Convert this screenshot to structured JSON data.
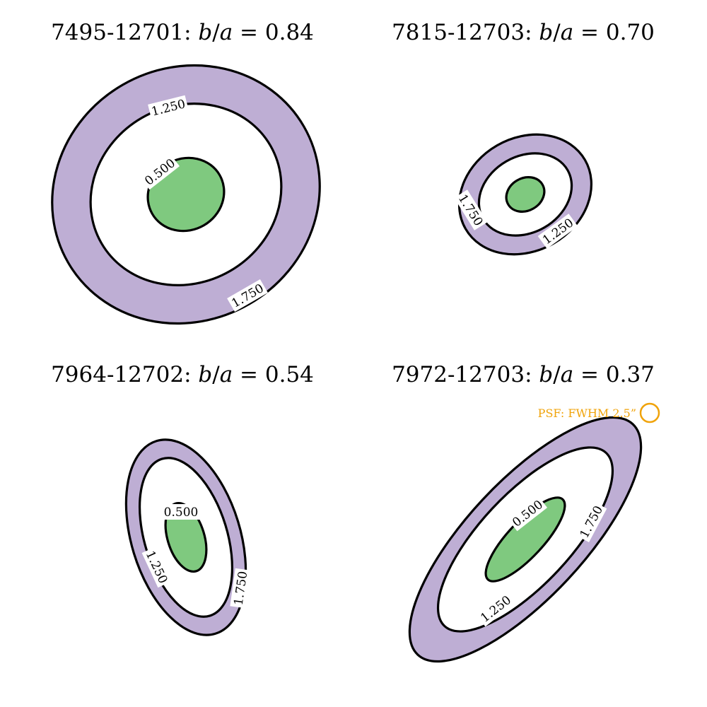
{
  "chart_data": [
    {
      "type": "contour",
      "galaxy_id": "7495-12701",
      "axis_ratio_text": "0.84",
      "axis_ratio": 0.84,
      "contour_levels": [
        0.5,
        1.25,
        1.75
      ],
      "contour_labels": [
        {
          "text": "0.500",
          "level": 0.5
        },
        {
          "text": "1.250",
          "level": 1.25
        },
        {
          "text": "1.750",
          "level": 1.75
        }
      ],
      "inner_region": "green",
      "outer_region": "purple"
    },
    {
      "type": "contour",
      "galaxy_id": "7815-12703",
      "axis_ratio_text": "0.70",
      "axis_ratio": 0.7,
      "contour_levels": [
        0.5,
        1.25,
        1.75
      ],
      "contour_labels": [
        {
          "text": "1.750",
          "level": 1.75
        },
        {
          "text": "1.250",
          "level": 1.25
        }
      ],
      "inner_region": "green",
      "outer_region": "purple"
    },
    {
      "type": "contour",
      "galaxy_id": "7964-12702",
      "axis_ratio_text": "0.54",
      "axis_ratio": 0.54,
      "contour_levels": [
        0.5,
        1.25,
        1.75
      ],
      "contour_labels": [
        {
          "text": "0.500",
          "level": 0.5
        },
        {
          "text": "1.250",
          "level": 1.25
        },
        {
          "text": "1.750",
          "level": 1.75
        }
      ],
      "inner_region": "green",
      "outer_region": "purple"
    },
    {
      "type": "contour",
      "galaxy_id": "7972-12703",
      "axis_ratio_text": "0.37",
      "axis_ratio": 0.37,
      "contour_levels": [
        0.5,
        1.25,
        1.75
      ],
      "contour_labels": [
        {
          "text": "0.500",
          "level": 0.5
        },
        {
          "text": "1.750",
          "level": 1.75
        },
        {
          "text": "1.250",
          "level": 1.25
        }
      ],
      "inner_region": "green",
      "outer_region": "purple"
    }
  ],
  "title_symbols": {
    "b": "b",
    "slash": "/",
    "a": "a",
    "equals": "="
  },
  "psf": {
    "label": "PSF: FWHM 2.5”",
    "fwhm_arcsec": 2.5,
    "color": "#f0a30a"
  },
  "colors": {
    "inner_fill": "#7fc97f",
    "outer_fill": "#beaed4",
    "contour": "#000000"
  }
}
